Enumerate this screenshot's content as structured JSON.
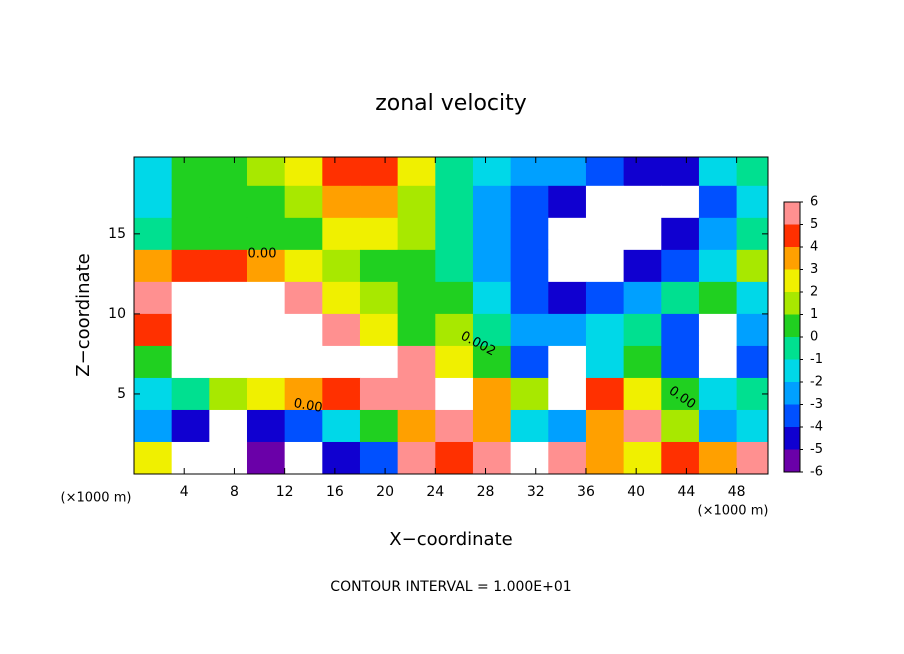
{
  "chart_data": {
    "type": "heatmap",
    "title": "zonal velocity",
    "x_label": "X−coordinate",
    "y_label": "Z−coordinate",
    "x_unit": "(×1000 m)",
    "y_unit": "(×1000 m)",
    "footer": "CONTOUR INTERVAL = 1.000E+01",
    "contour_labels": [
      "0.00",
      "0.002",
      "0.00",
      "0.00"
    ],
    "x": [
      1.5,
      4.5,
      7.5,
      10.5,
      13.5,
      16.5,
      19.5,
      22.5,
      25.5,
      28.5,
      31.5,
      34.5,
      37.5,
      40.5,
      43.5,
      46.5,
      49.5
    ],
    "y": [
      19,
      17,
      15,
      13,
      11,
      9,
      7,
      5,
      3,
      1
    ],
    "z": [
      [
        -1.5,
        0.5,
        0.5,
        1,
        2,
        4,
        4.5,
        2,
        -1,
        -2,
        -2.5,
        -3,
        -4,
        -5,
        -5,
        -2,
        -1
      ],
      [
        -2,
        0,
        0.5,
        0,
        1,
        3,
        3,
        1.5,
        -1,
        -2.5,
        -3.5,
        -5,
        8,
        8,
        8,
        -4,
        -2
      ],
      [
        -1,
        0,
        0.5,
        0.5,
        0.5,
        2,
        2,
        1,
        -1,
        -3,
        -4,
        8,
        8,
        8,
        -5,
        -3,
        -1
      ],
      [
        3,
        4,
        4.5,
        3,
        2,
        1,
        0.5,
        0,
        -1,
        -3,
        -4,
        8,
        8,
        -5,
        -4,
        -2,
        1
      ],
      [
        5,
        8,
        8,
        8,
        5,
        2,
        1,
        0,
        0.5,
        -2,
        -4,
        -5,
        -4,
        -3,
        -1,
        0,
        -2
      ],
      [
        4,
        8,
        8,
        8,
        8,
        5,
        2,
        0,
        1,
        -1,
        -3,
        -3,
        -2,
        -1,
        -4,
        8,
        -3
      ],
      [
        0,
        8,
        8,
        8,
        8,
        8,
        7,
        5,
        2,
        0,
        -4,
        8,
        -2,
        0,
        -4,
        8,
        -4
      ],
      [
        -2,
        -1,
        1,
        2,
        3,
        4,
        5,
        5,
        8,
        3,
        1,
        8,
        4,
        2,
        0,
        -2,
        -1
      ],
      [
        -3,
        -5,
        8,
        -5,
        -4,
        -2,
        0,
        3,
        5,
        3,
        -2,
        -3,
        3,
        5,
        1,
        -3,
        -2
      ],
      [
        2,
        8,
        8,
        -6,
        8,
        -5,
        -4,
        5,
        4,
        5,
        8,
        6,
        3,
        2,
        4,
        3,
        5
      ]
    ],
    "xlim": [
      0,
      50.5
    ],
    "ylim": [
      0,
      19.8
    ],
    "xticks": [
      4,
      8,
      12,
      16,
      20,
      24,
      28,
      32,
      36,
      40,
      44,
      48
    ],
    "yticks": [
      5,
      10,
      15
    ],
    "clim": [
      -6,
      6
    ],
    "cticks": [
      6,
      5,
      4,
      3,
      2,
      1,
      0,
      -1,
      -2,
      -3,
      -4,
      -5,
      -6
    ],
    "colors": [
      "#6a00a8",
      "#1000d0",
      "#0050ff",
      "#00a0ff",
      "#00d8e8",
      "#00e090",
      "#20d020",
      "#a8e800",
      "#f0f000",
      "#ffa000",
      "#ff3000",
      "#ff9090"
    ],
    "out_of_range_color": "#ffffff"
  }
}
